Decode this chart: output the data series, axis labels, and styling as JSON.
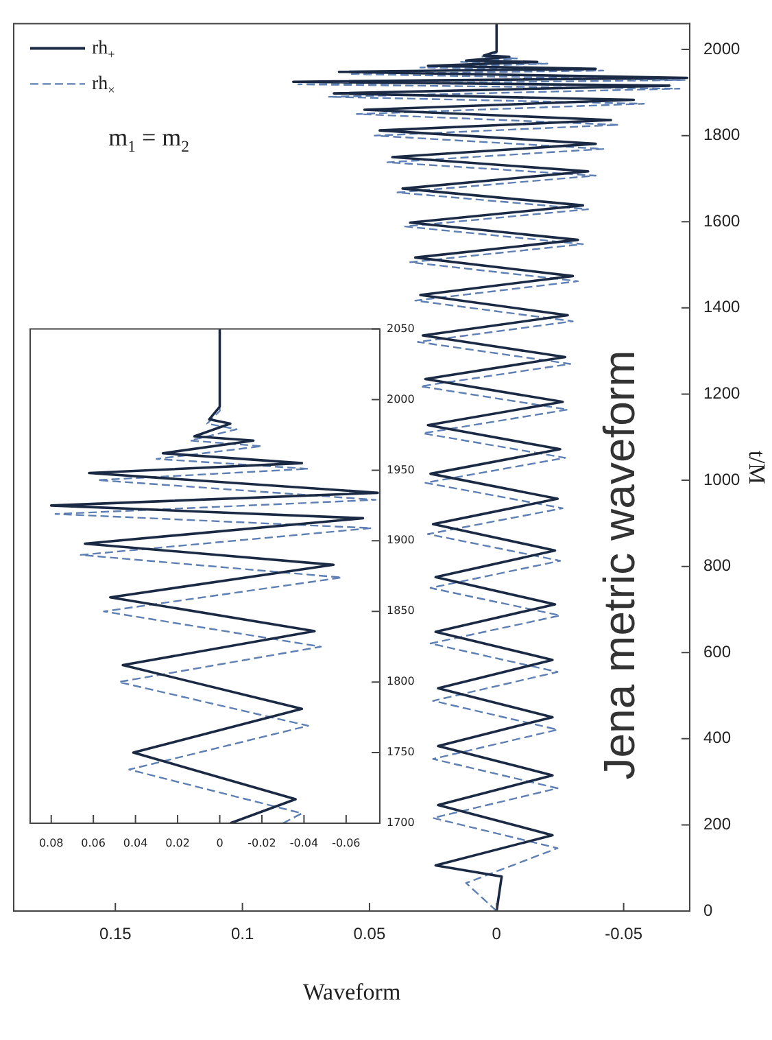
{
  "chart_data": [
    {
      "type": "line",
      "xlabel": "Waveform",
      "ylabel": "t/M",
      "xlim": [
        0.19,
        -0.076
      ],
      "ylim": [
        0,
        2060
      ],
      "xticks": [
        0.15,
        0.1,
        0.05,
        0,
        -0.05
      ],
      "yticks": [
        0,
        200,
        400,
        600,
        800,
        1000,
        1200,
        1400,
        1600,
        1800,
        2000
      ],
      "legend": "top left",
      "annotations": [
        "m$_{1}$ = m$_{2}$",
        "Jena metric waveform"
      ],
      "series": [
        {
          "name": "rh$_{+}$",
          "color": "#1b2a44",
          "line_style": "solid",
          "values": [
            0,
            80,
            106,
            176,
            246,
            315,
            383,
            450,
            517,
            583,
            648,
            712,
            775,
            837,
            898,
            957,
            1015,
            1072,
            1128,
            1182,
            1235,
            1286,
            1336,
            1383,
            1430,
            1474,
            1517,
            1558,
            1598,
            1638,
            1677,
            1717,
            1750,
            1781,
            1812,
            1836,
            1860,
            1883,
            1898,
            1916,
            1925,
            1934,
            1948,
            1955,
            1962,
            1971,
            1974,
            1983,
            1986,
            1995,
            2060
          ],
          "x": [
            0,
            -0.002,
            0.024,
            -0.022,
            0.023,
            -0.022,
            0.023,
            -0.022,
            0.023,
            -0.022,
            0.024,
            -0.023,
            0.024,
            -0.023,
            0.025,
            -0.024,
            0.026,
            -0.025,
            0.027,
            -0.026,
            0.028,
            -0.027,
            0.029,
            -0.028,
            0.03,
            -0.03,
            0.032,
            -0.032,
            0.034,
            -0.034,
            0.037,
            -0.036,
            0.041,
            -0.039,
            0.046,
            -0.045,
            0.052,
            -0.054,
            0.064,
            -0.068,
            0.08,
            -0.075,
            0.062,
            -0.039,
            0.027,
            -0.016,
            0.012,
            -0.005,
            0.005,
            0,
            0
          ]
        },
        {
          "name": "rh$_{×}$",
          "color": "#5d7fb4",
          "line_style": "dashed",
          "values": [
            0,
            65,
            146,
            216,
            285,
            353,
            421,
            488,
            555,
            621,
            686,
            750,
            813,
            875,
            935,
            994,
            1052,
            1109,
            1164,
            1218,
            1270,
            1321,
            1369,
            1417,
            1462,
            1506,
            1548,
            1589,
            1629,
            1668,
            1707,
            1738,
            1769,
            1800,
            1825,
            1850,
            1874,
            1890,
            1909,
            1919,
            1929,
            1943,
            1951,
            1958,
            1967,
            1971,
            1979,
            1983,
            1992,
            2060
          ],
          "x": [
            0,
            0.012,
            -0.024,
            0.025,
            -0.024,
            0.025,
            -0.024,
            0.025,
            -0.024,
            0.026,
            -0.025,
            0.026,
            -0.025,
            0.027,
            -0.026,
            0.028,
            -0.027,
            0.029,
            -0.028,
            0.03,
            -0.029,
            0.031,
            -0.03,
            0.032,
            -0.032,
            0.034,
            -0.034,
            0.036,
            -0.036,
            0.039,
            -0.039,
            0.043,
            -0.042,
            0.048,
            -0.048,
            0.055,
            -0.058,
            0.066,
            -0.072,
            0.078,
            -0.074,
            0.058,
            -0.042,
            0.03,
            -0.02,
            0.014,
            -0.008,
            0.006,
            0,
            0
          ]
        }
      ]
    },
    {
      "type": "line",
      "xlim": [
        0.09,
        -0.076
      ],
      "ylim": [
        1700,
        2050
      ],
      "xticks": [
        0.08,
        0.06,
        0.04,
        0.02,
        0,
        -0.02,
        -0.04,
        -0.06
      ],
      "yticks": [
        1700,
        1750,
        1800,
        1850,
        1900,
        1950,
        2000,
        2050
      ],
      "series": [
        {
          "color": "#1b2a44",
          "line_style": "solid",
          "values": [
            1700,
            1717,
            1750,
            1781,
            1812,
            1836,
            1860,
            1883,
            1898,
            1916,
            1925,
            1934,
            1948,
            1955,
            1962,
            1971,
            1974,
            1983,
            1986,
            1995,
            2050
          ],
          "x": [
            -0.005,
            -0.036,
            0.041,
            -0.039,
            0.046,
            -0.045,
            0.052,
            -0.054,
            0.064,
            -0.068,
            0.08,
            -0.075,
            0.062,
            -0.039,
            0.027,
            -0.016,
            0.012,
            -0.005,
            0.005,
            0,
            0
          ]
        },
        {
          "color": "#5d7fb4",
          "line_style": "dashed",
          "values": [
            1700,
            1707,
            1738,
            1769,
            1800,
            1825,
            1850,
            1874,
            1890,
            1909,
            1919,
            1929,
            1943,
            1951,
            1958,
            1967,
            1971,
            1979,
            1983,
            1992,
            2050
          ],
          "x": [
            -0.03,
            -0.039,
            0.043,
            -0.042,
            0.048,
            -0.048,
            0.055,
            -0.058,
            0.066,
            -0.072,
            0.078,
            -0.074,
            0.058,
            -0.042,
            0.03,
            -0.02,
            0.014,
            -0.008,
            0.006,
            0,
            0
          ]
        }
      ]
    }
  ]
}
